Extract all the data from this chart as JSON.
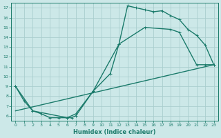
{
  "xlabel": "Humidex (Indice chaleur)",
  "bg_color": "#cce8e8",
  "grid_color": "#aacece",
  "line_color": "#1a7a6a",
  "xlim": [
    -0.5,
    23.5
  ],
  "ylim": [
    5.5,
    17.5
  ],
  "xticks": [
    0,
    1,
    2,
    3,
    4,
    5,
    6,
    7,
    8,
    9,
    10,
    11,
    12,
    13,
    14,
    15,
    16,
    17,
    18,
    19,
    20,
    21,
    22,
    23
  ],
  "yticks": [
    6,
    7,
    8,
    9,
    10,
    11,
    12,
    13,
    14,
    15,
    16,
    17
  ],
  "line1_x": [
    0,
    1,
    2,
    3,
    4,
    5,
    6,
    6.5,
    7,
    9,
    11,
    12,
    13,
    14,
    15,
    16,
    17,
    18,
    19,
    20,
    21,
    22,
    23
  ],
  "line1_y": [
    9,
    7.5,
    6.5,
    6.2,
    5.8,
    5.8,
    5.8,
    5.8,
    6.0,
    8.5,
    10.3,
    13.3,
    17.2,
    17.0,
    16.8,
    16.6,
    16.7,
    16.2,
    15.8,
    14.8,
    14.2,
    13.2,
    11.2
  ],
  "line2_x": [
    0,
    2,
    6,
    7,
    9,
    12,
    15,
    18,
    19,
    21,
    22,
    23
  ],
  "line2_y": [
    9,
    6.5,
    5.8,
    6.2,
    8.5,
    13.3,
    15.0,
    14.8,
    14.5,
    11.2,
    11.2,
    11.2
  ],
  "line3_x": [
    0,
    23
  ],
  "line3_y": [
    6.5,
    11.2
  ],
  "marker_size": 3.5,
  "line_width": 1.0
}
